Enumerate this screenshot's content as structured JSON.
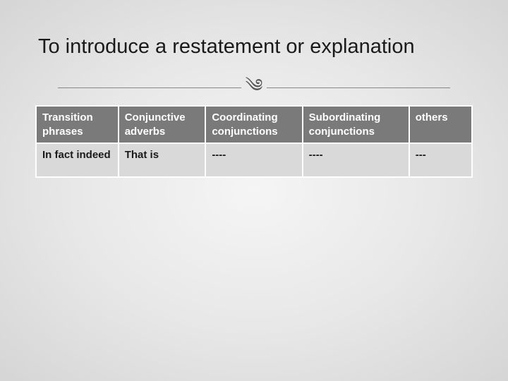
{
  "slide": {
    "title": "To introduce a restatement or explanation",
    "flourish_glyph": "༄",
    "background_gradient": {
      "center": "#f5f5f5",
      "mid": "#e8e8e8",
      "edge": "#d5d5d5"
    },
    "title_fontsize": 29,
    "title_color": "#1a1a1a"
  },
  "table": {
    "header_bg": "#7a7a7a",
    "header_fg": "#ffffff",
    "cell_bg": "#d9d9d9",
    "cell_fg": "#1a1a1a",
    "border_color": "#ffffff",
    "font_size": 15,
    "columns": [
      {
        "label": "Transition phrases",
        "width_pct": 17
      },
      {
        "label": "Conjunctive adverbs",
        "width_pct": 18
      },
      {
        "label": "Coordinating conjunctions",
        "width_pct": 20
      },
      {
        "label": "Subordinating conjunctions",
        "width_pct": 22
      },
      {
        "label": "others",
        "width_pct": 13
      }
    ],
    "rows": [
      {
        "cells": [
          "In fact indeed",
          "That is",
          "----",
          "----",
          "---"
        ]
      }
    ]
  }
}
